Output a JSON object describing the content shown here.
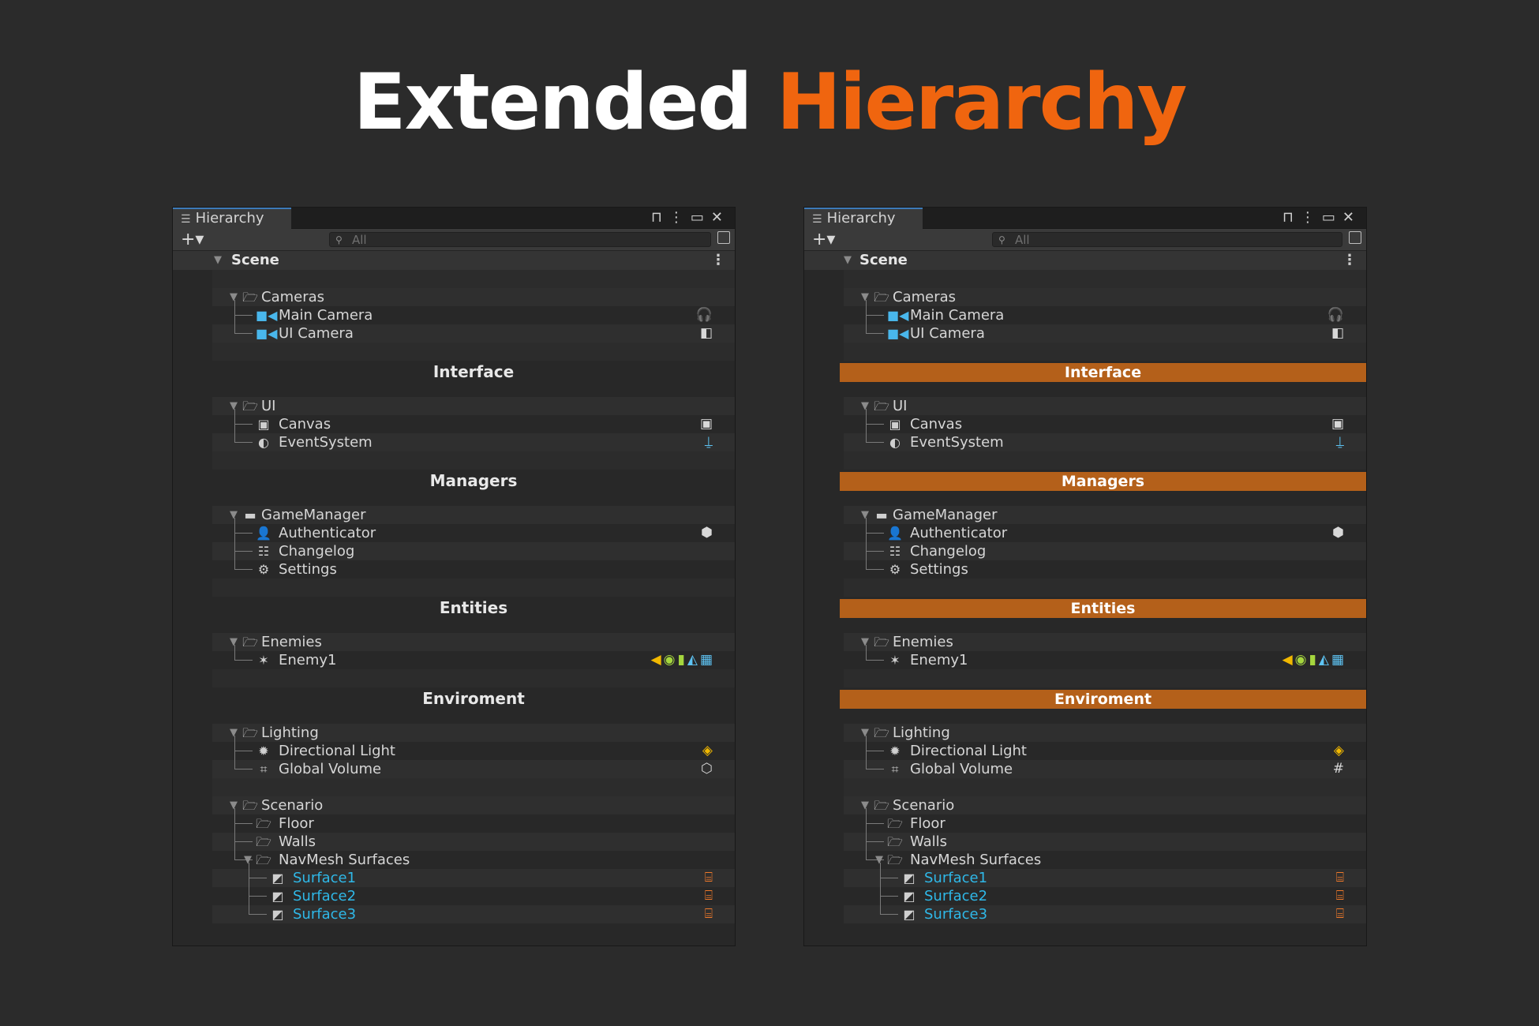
{
  "title": {
    "part1": "Extended",
    "part2": "Hierarchy"
  },
  "colors": {
    "accent": "#f0650f",
    "separator_bg": "#b4601a",
    "link": "#2fb8e8"
  },
  "window": {
    "tab_label": "Hierarchy",
    "add_label": "+▾",
    "search_placeholder": "All",
    "scene_label": "Scene"
  },
  "hierarchy": {
    "groups": [
      {
        "kind": "folder",
        "label": "Cameras",
        "children": [
          {
            "label": "Main Camera",
            "icon": "camera-icon",
            "right": "headphones-icon"
          },
          {
            "label": "UI Camera",
            "icon": "camera-icon",
            "right": "camera-off-icon"
          }
        ]
      },
      {
        "kind": "separator",
        "label": "Interface"
      },
      {
        "kind": "folder",
        "label": "UI",
        "children": [
          {
            "label": "Canvas",
            "icon": "canvas-icon",
            "right": "canvas-icon"
          },
          {
            "label": "EventSystem",
            "icon": "event-system-icon",
            "right": "joystick-icon"
          }
        ]
      },
      {
        "kind": "separator",
        "label": "Managers"
      },
      {
        "kind": "object",
        "label": "GameManager",
        "children": [
          {
            "label": "Authenticator",
            "icon": "user-icon",
            "right": "android-icon"
          },
          {
            "label": "Changelog",
            "icon": "list-icon"
          },
          {
            "label": "Settings",
            "icon": "gear-icon"
          }
        ]
      },
      {
        "kind": "separator",
        "label": "Entities"
      },
      {
        "kind": "folder",
        "label": "Enemies",
        "children": [
          {
            "label": "Enemy1",
            "icon": "character-icon",
            "right": "multi-component-icons"
          }
        ]
      },
      {
        "kind": "separator",
        "label": "Enviroment"
      },
      {
        "kind": "folder",
        "label": "Lighting",
        "children": [
          {
            "label": "Directional Light",
            "icon": "sun-icon",
            "right": "light-icon"
          },
          {
            "label": "Global Volume",
            "icon": "volume-icon",
            "right": "cube-icon"
          }
        ]
      },
      {
        "kind": "folder",
        "label": "Scenario",
        "children": [
          {
            "label": "Floor",
            "icon": "folder-icon"
          },
          {
            "label": "Walls",
            "icon": "folder-icon"
          },
          {
            "label": "NavMesh Surfaces",
            "icon": "folder-icon",
            "expanded": true
          }
        ]
      }
    ],
    "surfaces": [
      "Surface1",
      "Surface2",
      "Surface3"
    ]
  },
  "labels": {
    "cameras": "Cameras",
    "main_camera": "Main Camera",
    "ui_camera": "UI Camera",
    "interface": "Interface",
    "ui": "UI",
    "canvas": "Canvas",
    "event_system": "EventSystem",
    "managers": "Managers",
    "game_manager": "GameManager",
    "authenticator": "Authenticator",
    "changelog": "Changelog",
    "settings": "Settings",
    "entities": "Entities",
    "enemies": "Enemies",
    "enemy1": "Enemy1",
    "environment": "Enviroment",
    "lighting": "Lighting",
    "directional_light": "Directional Light",
    "global_volume": "Global Volume",
    "scenario": "Scenario",
    "floor": "Floor",
    "walls": "Walls",
    "navmesh_surfaces": "NavMesh Surfaces",
    "surface1": "Surface1",
    "surface2": "Surface2",
    "surface3": "Surface3"
  }
}
